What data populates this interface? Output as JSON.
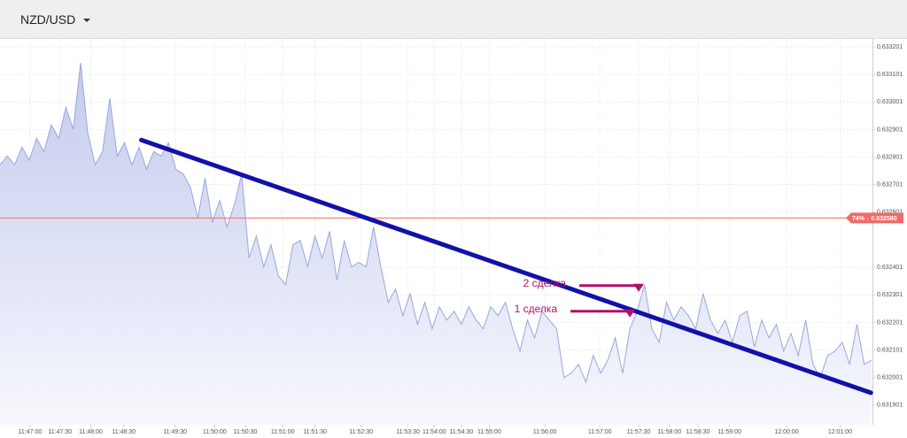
{
  "header": {
    "symbol": "NZD/USD"
  },
  "chart_data": {
    "type": "line",
    "fill": true,
    "color": "#9aa6da",
    "grid": true,
    "xlim": [
      0,
      119
    ],
    "ylim": [
      0.63183,
      0.63323
    ],
    "yticks": [
      0.633201,
      0.633101,
      0.633001,
      0.632901,
      0.632801,
      0.632701,
      0.632601,
      0.632401,
      0.632301,
      0.632201,
      0.632101,
      0.632001,
      0.631901
    ],
    "xticks": [
      {
        "value": 4.1,
        "label": "11:47:00"
      },
      {
        "value": 8.2,
        "label": "11:47:30"
      },
      {
        "value": 12.4,
        "label": "11:48:00"
      },
      {
        "value": 16.9,
        "label": "11:48:30"
      },
      {
        "value": 23.9,
        "label": "11:49:30"
      },
      {
        "value": 29.3,
        "label": "11:50:00"
      },
      {
        "value": 33.5,
        "label": "11:50:30"
      },
      {
        "value": 38.6,
        "label": "11:51:00"
      },
      {
        "value": 43,
        "label": "11:51:30"
      },
      {
        "value": 49.3,
        "label": "11:52:30"
      },
      {
        "value": 55.7,
        "label": "11:53:30"
      },
      {
        "value": 59.3,
        "label": "11:54:00"
      },
      {
        "value": 63,
        "label": "11:54:30"
      },
      {
        "value": 66.8,
        "label": "11:55:00"
      },
      {
        "value": 74.4,
        "label": "11:56:00"
      },
      {
        "value": 81.9,
        "label": "11:57:00"
      },
      {
        "value": 87.2,
        "label": "11:57:30"
      },
      {
        "value": 91.4,
        "label": "11:58:00"
      },
      {
        "value": 95.3,
        "label": "11:58:30"
      },
      {
        "value": 99.6,
        "label": "11:59:00"
      },
      {
        "value": 107.4,
        "label": "12:00:00"
      },
      {
        "value": 114.7,
        "label": "12:01:00"
      }
    ],
    "values": [
      0.632773,
      0.632805,
      0.632773,
      0.632837,
      0.632789,
      0.632869,
      0.632821,
      0.632918,
      0.632869,
      0.632982,
      0.632902,
      0.633143,
      0.632886,
      0.632773,
      0.632821,
      0.633014,
      0.632805,
      0.632853,
      0.632773,
      0.632837,
      0.632757,
      0.632821,
      0.632805,
      0.632853,
      0.632757,
      0.632741,
      0.632692,
      0.63258,
      0.632725,
      0.632564,
      0.632644,
      0.632548,
      0.632628,
      0.632741,
      0.632435,
      0.632515,
      0.632403,
      0.632483,
      0.632371,
      0.632338,
      0.632483,
      0.632499,
      0.632403,
      0.632515,
      0.632435,
      0.632532,
      0.632355,
      0.632499,
      0.632403,
      0.632419,
      0.632403,
      0.632548,
      0.632403,
      0.632274,
      0.632322,
      0.632226,
      0.632306,
      0.632194,
      0.632274,
      0.632178,
      0.632258,
      0.63221,
      0.632242,
      0.632194,
      0.632258,
      0.63221,
      0.632178,
      0.632258,
      0.632226,
      0.632274,
      0.632178,
      0.632097,
      0.63221,
      0.632145,
      0.632242,
      0.63221,
      0.632178,
      0.632001,
      0.632017,
      0.632049,
      0.631984,
      0.632081,
      0.632017,
      0.632065,
      0.632145,
      0.632017,
      0.632178,
      0.632242,
      0.632338,
      0.632178,
      0.632129,
      0.632274,
      0.63221,
      0.632258,
      0.632226,
      0.632178,
      0.632306,
      0.63221,
      0.632161,
      0.63221,
      0.632129,
      0.632226,
      0.632242,
      0.632113,
      0.63221,
      0.632145,
      0.632194,
      0.632097,
      0.632161,
      0.632081,
      0.63221,
      0.632049,
      0.632001,
      0.632081,
      0.632097,
      0.632129,
      0.632049,
      0.632194,
      0.632049,
      0.632065
    ],
    "current_price": {
      "value": 0.63258,
      "label": "74% ↓ 0.632580",
      "color": "#ef6b6b"
    },
    "trend_line": {
      "x": [
        19.3,
        118.9
      ],
      "y": [
        0.632863,
        0.631946
      ],
      "color": "#1111aa"
    },
    "annotations": [
      {
        "text": "2 сделка",
        "x": 87.2,
        "y": 0.632335,
        "color": "#b0106c"
      },
      {
        "text": "1 сделка",
        "x": 86,
        "y": 0.632242,
        "color": "#b0106c"
      }
    ]
  }
}
